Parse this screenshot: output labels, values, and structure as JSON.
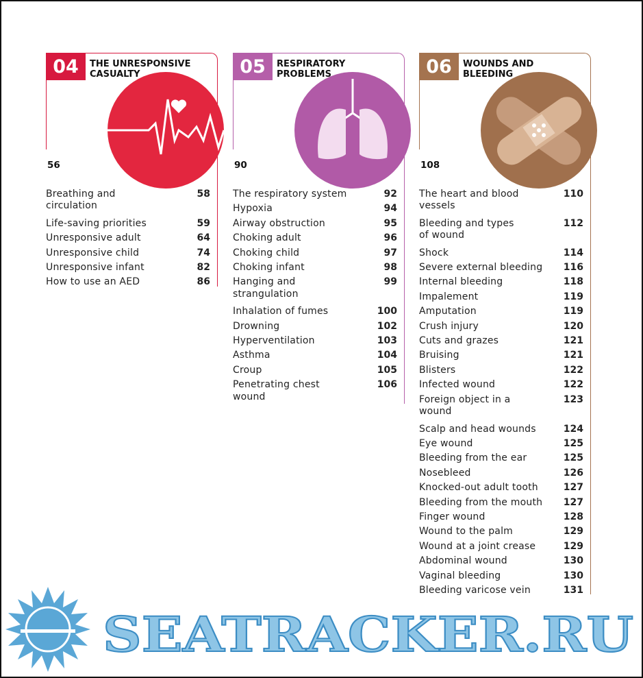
{
  "sections": [
    {
      "number": "04",
      "title": "THE UNRESPONSIVE\nCASUALTY",
      "start_page": "56",
      "entries": [
        [
          "Breathing and\ncirculation",
          "58"
        ],
        [
          "Life-saving priorities",
          "59"
        ],
        [
          "Unresponsive adult",
          "64"
        ],
        [
          "Unresponsive child",
          "74"
        ],
        [
          "Unresponsive infant",
          "82"
        ],
        [
          "How to use an AED",
          "86"
        ]
      ]
    },
    {
      "number": "05",
      "title": "RESPIRATORY\nPROBLEMS",
      "start_page": "90",
      "entries": [
        [
          "The respiratory system",
          "92"
        ],
        [
          "Hypoxia",
          "94"
        ],
        [
          "Airway obstruction",
          "95"
        ],
        [
          "Choking adult",
          "96"
        ],
        [
          "Choking child",
          "97"
        ],
        [
          "Choking infant",
          "98"
        ],
        [
          "Hanging and\nstrangulation",
          "99"
        ],
        [
          "Inhalation of fumes",
          "100"
        ],
        [
          "Drowning",
          "102"
        ],
        [
          "Hyperventilation",
          "103"
        ],
        [
          "Asthma",
          "104"
        ],
        [
          "Croup",
          "105"
        ],
        [
          "Penetrating chest\nwound",
          "106"
        ]
      ]
    },
    {
      "number": "06",
      "title": "WOUNDS AND\nBLEEDING",
      "start_page": "108",
      "entries": [
        [
          "The heart and blood\nvessels",
          "110"
        ],
        [
          "Bleeding and types\nof wound",
          "112"
        ],
        [
          "Shock",
          "114"
        ],
        [
          "Severe external bleeding",
          "116"
        ],
        [
          "Internal bleeding",
          "118"
        ],
        [
          "Impalement",
          "119"
        ],
        [
          "Amputation",
          "119"
        ],
        [
          "Crush injury",
          "120"
        ],
        [
          "Cuts and grazes",
          "121"
        ],
        [
          "Bruising",
          "121"
        ],
        [
          "Blisters",
          "122"
        ],
        [
          "Infected wound",
          "122"
        ],
        [
          "Foreign object in a\nwound",
          "123"
        ],
        [
          "Scalp and head wounds",
          "124"
        ],
        [
          "Eye wound",
          "125"
        ],
        [
          "Bleeding from the ear",
          "125"
        ],
        [
          "Nosebleed",
          "126"
        ],
        [
          "Knocked-out adult tooth",
          "127"
        ],
        [
          "Bleeding from the mouth",
          "127"
        ],
        [
          "Finger wound",
          "128"
        ],
        [
          "Wound to the palm",
          "129"
        ],
        [
          "Wound at a joint crease",
          "129"
        ],
        [
          "Abdominal wound",
          "130"
        ],
        [
          "Vaginal bleeding",
          "130"
        ],
        [
          "Bleeding varicose vein",
          "131"
        ]
      ]
    }
  ],
  "watermark": "SEATRACKER.RU"
}
